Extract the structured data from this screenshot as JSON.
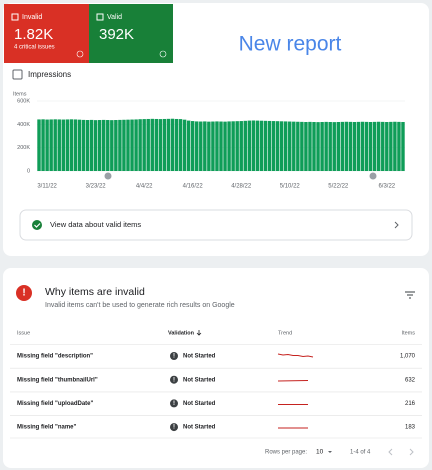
{
  "summary": {
    "invalid": {
      "label": "Invalid",
      "value": "1.82K",
      "note": "4 critical issues"
    },
    "valid": {
      "label": "Valid",
      "value": "392K"
    },
    "title": "New report"
  },
  "toggle": "Impressions",
  "chart_data": {
    "type": "bar",
    "y_label": "Items",
    "color": "#0f9d58",
    "ylim": [
      0,
      600000
    ],
    "yticks": [
      0,
      {
        "value": 200000,
        "label": "200K"
      },
      {
        "value": 400000,
        "label": "400K"
      },
      {
        "value": 600000,
        "label": "600K"
      }
    ],
    "categories": [
      null,
      null,
      "3/11/22",
      null,
      null,
      null,
      null,
      null,
      null,
      null,
      null,
      null,
      null,
      null,
      "3/23/22",
      null,
      null,
      null,
      null,
      null,
      null,
      null,
      null,
      null,
      null,
      null,
      "4/4/22",
      null,
      null,
      null,
      null,
      null,
      null,
      null,
      null,
      null,
      null,
      null,
      "4/16/22",
      null,
      null,
      null,
      null,
      null,
      null,
      null,
      null,
      null,
      null,
      null,
      "4/28/22",
      null,
      null,
      null,
      null,
      null,
      null,
      null,
      null,
      null,
      null,
      null,
      "5/10/22",
      null,
      null,
      null,
      null,
      null,
      null,
      null,
      null,
      null,
      null,
      null,
      "5/22/22",
      null,
      null,
      null,
      null,
      null,
      null,
      null,
      null,
      null,
      null,
      null,
      "6/3/22",
      null,
      null,
      null,
      null
    ],
    "values": [
      442000,
      443000,
      441000,
      442000,
      443000,
      442000,
      441000,
      442000,
      443000,
      442000,
      440000,
      438000,
      437000,
      438000,
      436000,
      437000,
      438000,
      437000,
      436000,
      437000,
      438000,
      439000,
      440000,
      441000,
      442000,
      444000,
      445000,
      446000,
      447000,
      446000,
      445000,
      446000,
      447000,
      448000,
      446000,
      445000,
      440000,
      432000,
      428000,
      425000,
      424000,
      425000,
      423000,
      424000,
      425000,
      424000,
      423000,
      425000,
      426000,
      427000,
      428000,
      430000,
      432000,
      433000,
      432000,
      431000,
      430000,
      429000,
      428000,
      427000,
      426000,
      425000,
      424000,
      423000,
      422000,
      421000,
      420000,
      421000,
      420000,
      419000,
      420000,
      421000,
      420000,
      419000,
      420000,
      421000,
      422000,
      421000,
      420000,
      421000,
      422000,
      421000,
      420000,
      421000,
      422000,
      421000,
      420000,
      421000,
      422000,
      421000,
      420000
    ]
  },
  "view_link": "View data about valid items",
  "issues": {
    "title": "Why items are invalid",
    "subtitle": "Invalid items can't be used to generate rich results on Google",
    "columns": [
      "Issue",
      "Validation",
      "Trend",
      "Items"
    ],
    "rows": [
      [
        "Missing field \"description\"",
        "Not Started",
        "1,070"
      ],
      [
        "Missing field \"thumbnailUrl\"",
        "Not Started",
        "632"
      ],
      [
        "Missing field \"uploadDate\"",
        "Not Started",
        "216"
      ],
      [
        "Missing field \"name\"",
        "Not Started",
        "183"
      ]
    ],
    "footer": {
      "rows_label": "Rows per page:",
      "rows_value": "10",
      "range": "1-4 of 4"
    }
  }
}
